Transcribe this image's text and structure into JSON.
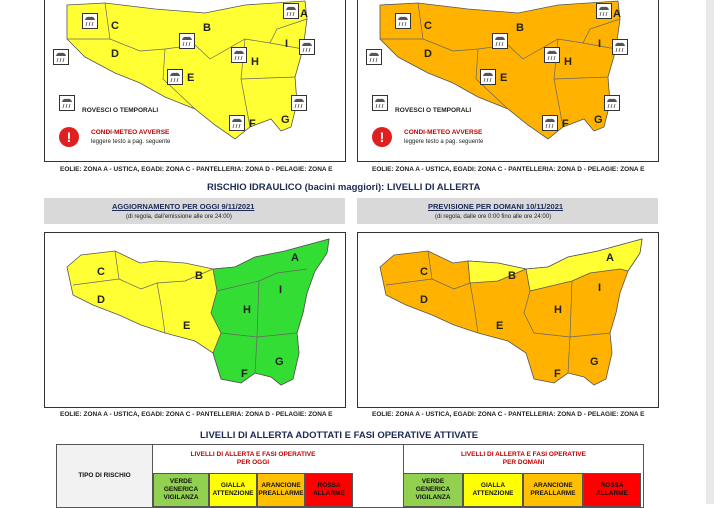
{
  "map_labels": {
    "A": "A",
    "B": "B",
    "C": "C",
    "D": "D",
    "E": "E",
    "F": "F",
    "G": "G",
    "H": "H",
    "I": "I"
  },
  "legend": {
    "storms": "ROVESCI O TEMPORALI",
    "adverse": "CONDI-METEO AVVERSE",
    "adverse_note": "leggere testo a pag. seguente"
  },
  "zones_footer": "EOLIE: ZONA A - USTICA, EGADI: ZONA C - PANTELLERIA: ZONA D - PELAGIE: ZONA E",
  "hydro_title": "RISCHIO IDRAULICO (bacini maggiori): LIVELLI DI ALLERTA",
  "today": {
    "title": "AGGIORNAMENTO PER OGGI 9/11/2021",
    "subtitle": "(di regola, dall'emissione alle ore 24:00)"
  },
  "tomorrow": {
    "title": "PREVISIONE PER DOMANI 10/11/2021",
    "subtitle": "(di regola, dalle ore 0:00 fino alle ore 24:00)"
  },
  "levels_title": "LIVELLI DI ALLERTA ADOTTATI E FASI OPERATIVE ATTIVATE",
  "table": {
    "risk_type_header": "TIPO DI RISCHIO",
    "today_header_1": "LIVELLI DI ALLERTA E FASI OPERATIVE",
    "today_header_2": "PER OGGI",
    "tomorrow_header_1": "LIVELLI DI ALLERTA E FASI OPERATIVE",
    "tomorrow_header_2": "PER DOMANI",
    "levels": [
      {
        "name": "VERDE",
        "phase_1": "GENERICA",
        "phase_2": "VIGILANZA",
        "color": "#92d050"
      },
      {
        "name": "GIALLA",
        "phase_1": "ATTENZIONE",
        "phase_2": "",
        "color": "#ffff00"
      },
      {
        "name": "ARANCIONE",
        "phase_1": "PREALLARME",
        "phase_2": "",
        "color": "#ffc000"
      },
      {
        "name": "ROSSA",
        "phase_1": "ALLARME",
        "phase_2": "",
        "color": "#ff0000"
      }
    ]
  },
  "colors": {
    "yellow": "#ffff33",
    "orange": "#ffb300",
    "green": "#33dd33",
    "red_header": "#c00000"
  }
}
